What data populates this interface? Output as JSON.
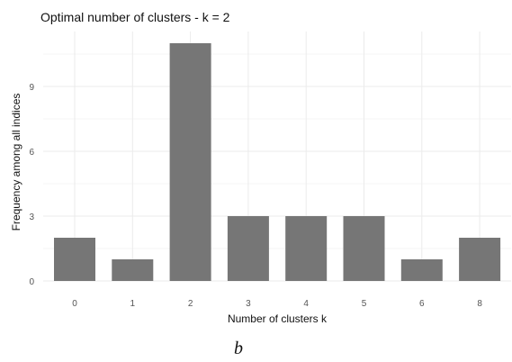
{
  "caption": "b",
  "chart_data": {
    "type": "bar",
    "title": "Optimal number of clusters - k = 2",
    "xlabel": "Number of clusters k",
    "ylabel": "Frequency among all indices",
    "categories": [
      "0",
      "1",
      "2",
      "3",
      "4",
      "5",
      "6",
      "8"
    ],
    "values": [
      2,
      1,
      11,
      3,
      3,
      3,
      1,
      2
    ],
    "ylim": [
      0,
      11
    ],
    "yticks": [
      0,
      3,
      6,
      9
    ],
    "grid": true,
    "legend": "none",
    "bar_color": "#767676",
    "grid_color": "#ebebeb"
  }
}
